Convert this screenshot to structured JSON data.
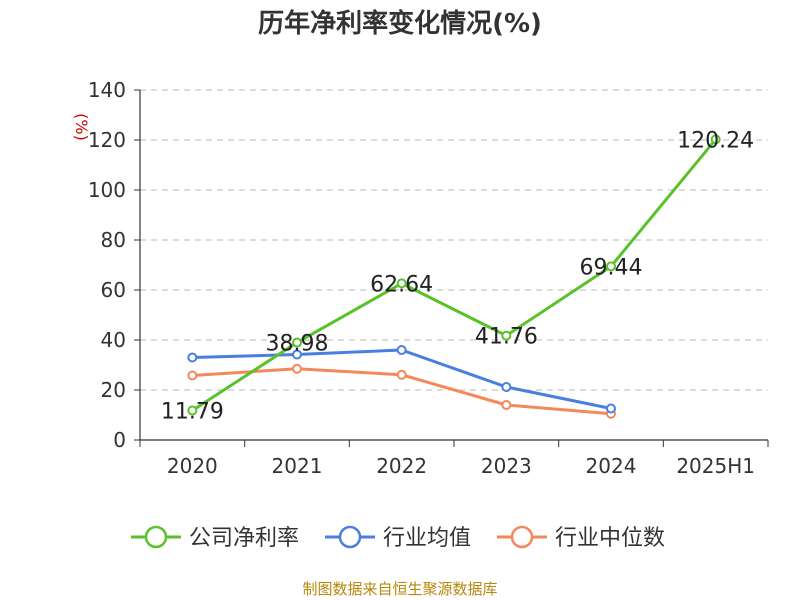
{
  "chart_data": {
    "type": "line",
    "title": "历年净利率变化情况(%)",
    "ylabel": "(%)",
    "categories": [
      "2020",
      "2021",
      "2022",
      "2023",
      "2024",
      "2025H1"
    ],
    "ylim": [
      0,
      140
    ],
    "yticks": [
      0,
      20,
      40,
      60,
      80,
      100,
      120,
      140
    ],
    "grid": true,
    "legend_position": "bottom",
    "series": [
      {
        "name": "公司净利率",
        "color": "#5ac229",
        "values": [
          11.79,
          38.98,
          62.64,
          41.76,
          69.44,
          120.24
        ],
        "labels": [
          "11.79",
          "38.98",
          "62.64",
          "41.76",
          "69.44",
          "120.24"
        ]
      },
      {
        "name": "行业均值",
        "color": "#4a7ee0",
        "values": [
          33,
          34.2,
          36,
          21.2,
          12.6,
          null
        ]
      },
      {
        "name": "行业中位数",
        "color": "#f4885a",
        "values": [
          25.8,
          28.5,
          26.1,
          14,
          10.5,
          null
        ]
      }
    ],
    "source": "制图数据来自恒生聚源数据库"
  }
}
